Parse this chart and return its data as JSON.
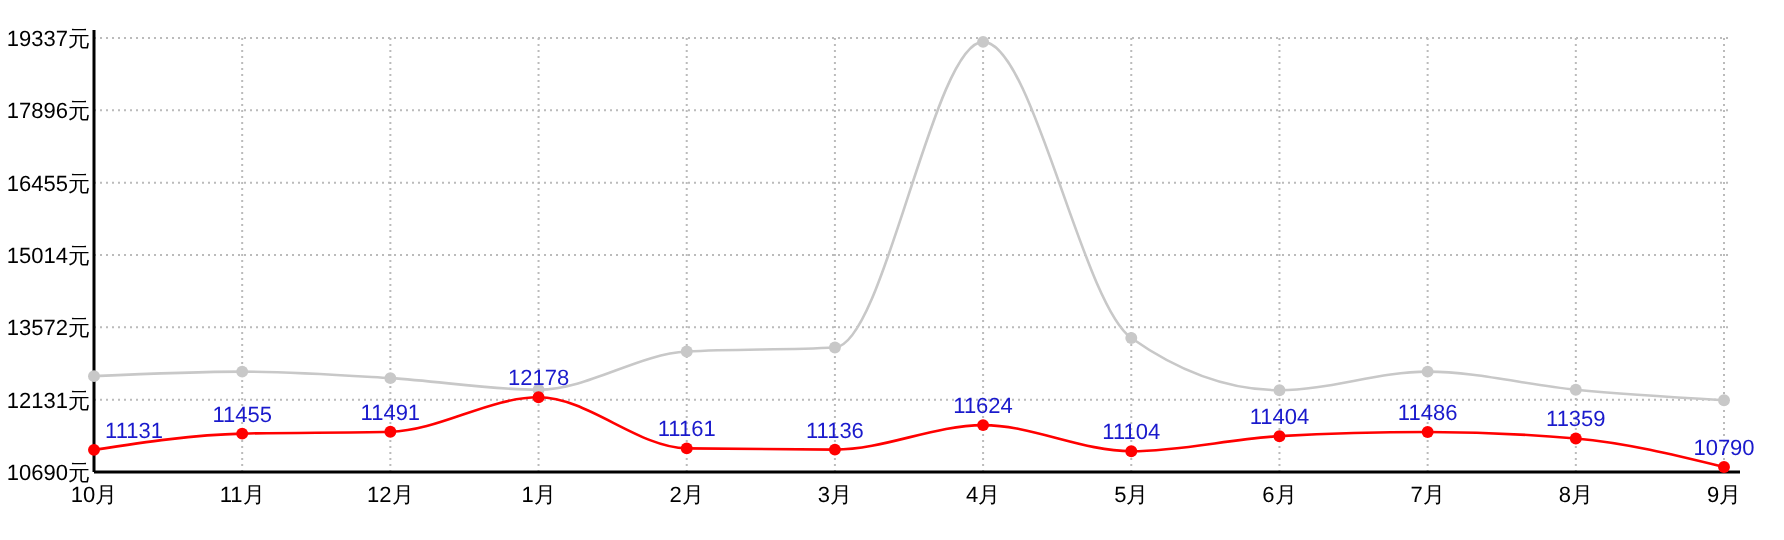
{
  "chart_data": {
    "type": "line",
    "categories": [
      "10月",
      "11月",
      "12月",
      "1月",
      "2月",
      "3月",
      "4月",
      "5月",
      "6月",
      "7月",
      "8月",
      "9月"
    ],
    "series": [
      {
        "color": "#c8c8c8",
        "values": [
          12600,
          12690,
          12560,
          12330,
          13090,
          13170,
          19260,
          13360,
          12320,
          12690,
          12330,
          12120
        ]
      },
      {
        "color": "#ff0000",
        "values": [
          11131,
          11455,
          11491,
          12178,
          11161,
          11136,
          11624,
          11104,
          11404,
          11486,
          11359,
          10790
        ],
        "value_labels": [
          "11131",
          "11455",
          "11491",
          "12178",
          "11161",
          "11136",
          "11624",
          "11104",
          "11404",
          "11486",
          "11359",
          "10790"
        ]
      }
    ],
    "ylim": [
      10690,
      19337
    ],
    "yticks": [
      {
        "value": 10690,
        "label": "10690元"
      },
      {
        "value": 12131,
        "label": "12131元"
      },
      {
        "value": 13572,
        "label": "13572元"
      },
      {
        "value": 15014,
        "label": "15014元"
      },
      {
        "value": 16455,
        "label": "16455元"
      },
      {
        "value": 17896,
        "label": "17896元"
      },
      {
        "value": 19337,
        "label": "19337元"
      }
    ],
    "grid": true,
    "marker": "circle",
    "line_style": "solid"
  }
}
